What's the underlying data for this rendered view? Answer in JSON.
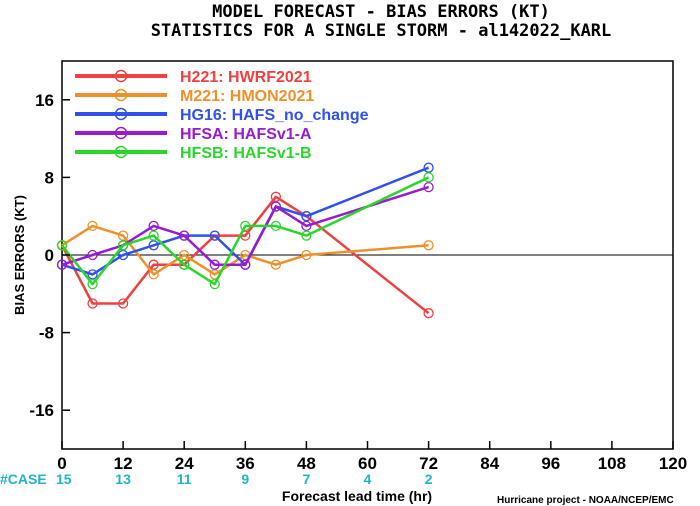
{
  "chart_data": {
    "type": "line",
    "title": "MODEL FORECAST - BIAS ERRORS (KT)",
    "subtitle": "STATISTICS FOR A SINGLE STORM - al142022_KARL",
    "xlabel": "Forecast lead time (hr)",
    "ylabel": "BIAS ERRORS (KT)",
    "xlim": [
      0,
      120
    ],
    "ylim": [
      -20,
      20
    ],
    "xticks": [
      0,
      12,
      24,
      36,
      48,
      60,
      72,
      84,
      96,
      108,
      120
    ],
    "yticks": [
      -16,
      -8,
      0,
      8,
      16
    ],
    "zero_line": true,
    "legend_position": "top-left",
    "case_label": "#CASE",
    "cases": [
      {
        "x": 0,
        "n": "15"
      },
      {
        "x": 12,
        "n": "13"
      },
      {
        "x": 24,
        "n": "11"
      },
      {
        "x": 36,
        "n": "9"
      },
      {
        "x": 48,
        "n": "7"
      },
      {
        "x": 60,
        "n": "4"
      },
      {
        "x": 72,
        "n": "2"
      }
    ],
    "credit": "Hurricane project - NOAA/NCEP/EMC",
    "series": [
      {
        "name": "H221: HWRF2021",
        "color": "#f04040",
        "x": [
          0,
          6,
          12,
          18,
          24,
          30,
          36,
          42,
          48,
          72
        ],
        "y": [
          1,
          -5,
          -5,
          -1,
          -1,
          2,
          2,
          6,
          4,
          -6
        ]
      },
      {
        "name": "M221: HMON2021",
        "color": "#f0902a",
        "x": [
          0,
          6,
          12,
          18,
          24,
          30,
          36,
          42,
          48,
          72
        ],
        "y": [
          1,
          3,
          2,
          -2,
          0,
          -2,
          0,
          -1,
          0,
          1
        ]
      },
      {
        "name": "HG16: HAFS_no_change",
        "color": "#3050f0",
        "x": [
          0,
          6,
          12,
          18,
          24,
          30,
          36,
          42,
          48,
          72
        ],
        "y": [
          -1,
          -2,
          0,
          1,
          2,
          2,
          -1,
          5,
          4,
          9
        ]
      },
      {
        "name": "HFSA: HAFSv1-A",
        "color": "#9a1ad0",
        "x": [
          0,
          6,
          12,
          18,
          24,
          30,
          36,
          42,
          48,
          72
        ],
        "y": [
          -1,
          0,
          1,
          3,
          2,
          -1,
          -1,
          5,
          3,
          7
        ]
      },
      {
        "name": "HFSB: HAFSv1-B",
        "color": "#2ad62a",
        "x": [
          0,
          6,
          12,
          18,
          24,
          30,
          36,
          42,
          48,
          72
        ],
        "y": [
          1,
          -3,
          1,
          2,
          -1,
          -3,
          3,
          3,
          2,
          8
        ]
      }
    ]
  }
}
